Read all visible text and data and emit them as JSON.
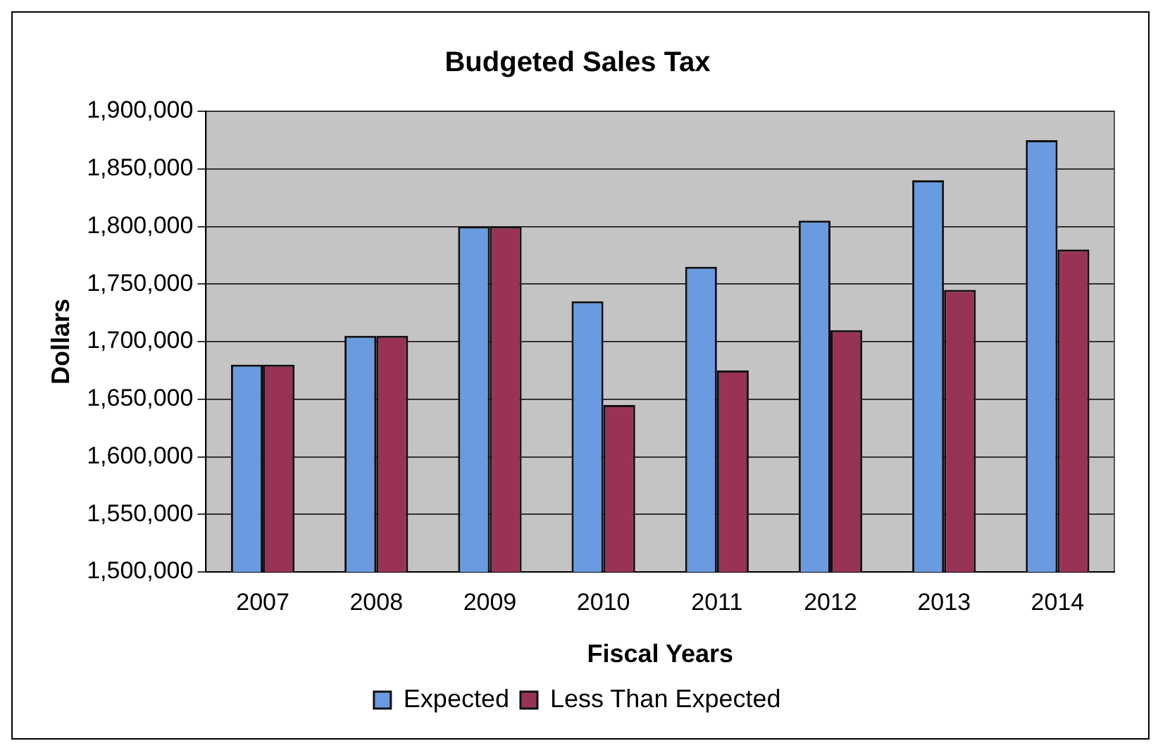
{
  "chart_data": {
    "type": "bar",
    "title": "Budgeted Sales Tax",
    "xlabel": "Fiscal Years",
    "ylabel": "Dollars",
    "categories": [
      "2007",
      "2008",
      "2009",
      "2010",
      "2011",
      "2012",
      "2013",
      "2014"
    ],
    "series": [
      {
        "name": "Expected",
        "color": "#6a9be0",
        "values": [
          1680000,
          1705000,
          1800000,
          1735000,
          1765000,
          1805000,
          1840000,
          1875000
        ]
      },
      {
        "name": "Less Than Expected",
        "color": "#993355",
        "values": [
          1680000,
          1705000,
          1800000,
          1645000,
          1675000,
          1710000,
          1745000,
          1780000
        ]
      }
    ],
    "ylim": [
      1500000,
      1900000
    ],
    "yticks": [
      {
        "value": 1500000,
        "label": "1,500,000"
      },
      {
        "value": 1550000,
        "label": "1,550,000"
      },
      {
        "value": 1600000,
        "label": "1,600,000"
      },
      {
        "value": 1650000,
        "label": "1,650,000"
      },
      {
        "value": 1700000,
        "label": "1,700,000"
      },
      {
        "value": 1750000,
        "label": "1,750,000"
      },
      {
        "value": 1800000,
        "label": "1,800,000"
      },
      {
        "value": 1850000,
        "label": "1,850,000"
      },
      {
        "value": 1900000,
        "label": "1,900,000"
      }
    ],
    "grid": "y",
    "legend": "bottom"
  }
}
